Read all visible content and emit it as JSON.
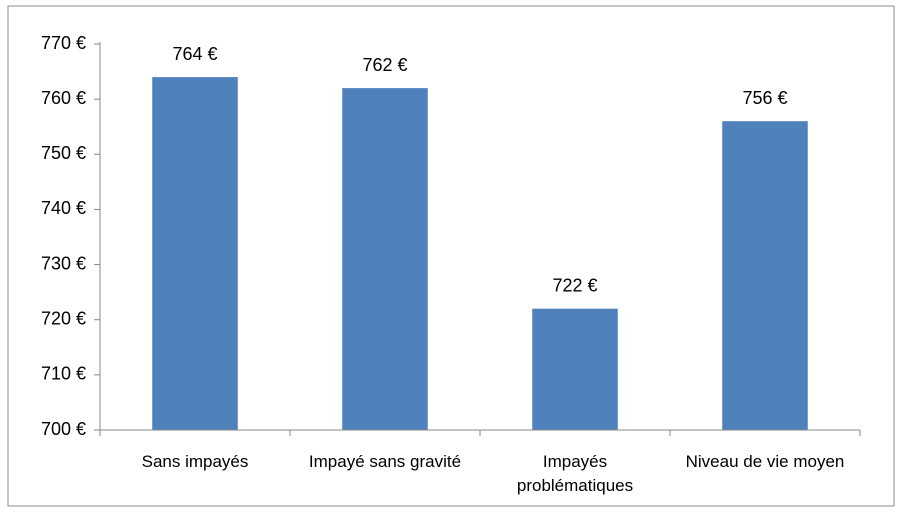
{
  "chart_data": {
    "type": "bar",
    "categories": [
      "Sans impayés",
      "Impayé sans gravité",
      "Impayés problématiques",
      "Niveau de vie moyen"
    ],
    "values": [
      764,
      762,
      722,
      756
    ],
    "value_labels": [
      "764 €",
      "762 €",
      "722 €",
      "756 €"
    ],
    "color": "#4f81bd",
    "ylim": [
      700,
      770
    ],
    "yticks": [
      {
        "value": 700,
        "label": "700 €"
      },
      {
        "value": 710,
        "label": "710 €"
      },
      {
        "value": 720,
        "label": "720 €"
      },
      {
        "value": 730,
        "label": "730 €"
      },
      {
        "value": 740,
        "label": "740 €"
      },
      {
        "value": 750,
        "label": "750 €"
      },
      {
        "value": 760,
        "label": "760 €"
      },
      {
        "value": 770,
        "label": "770 €"
      }
    ],
    "grid": false
  }
}
